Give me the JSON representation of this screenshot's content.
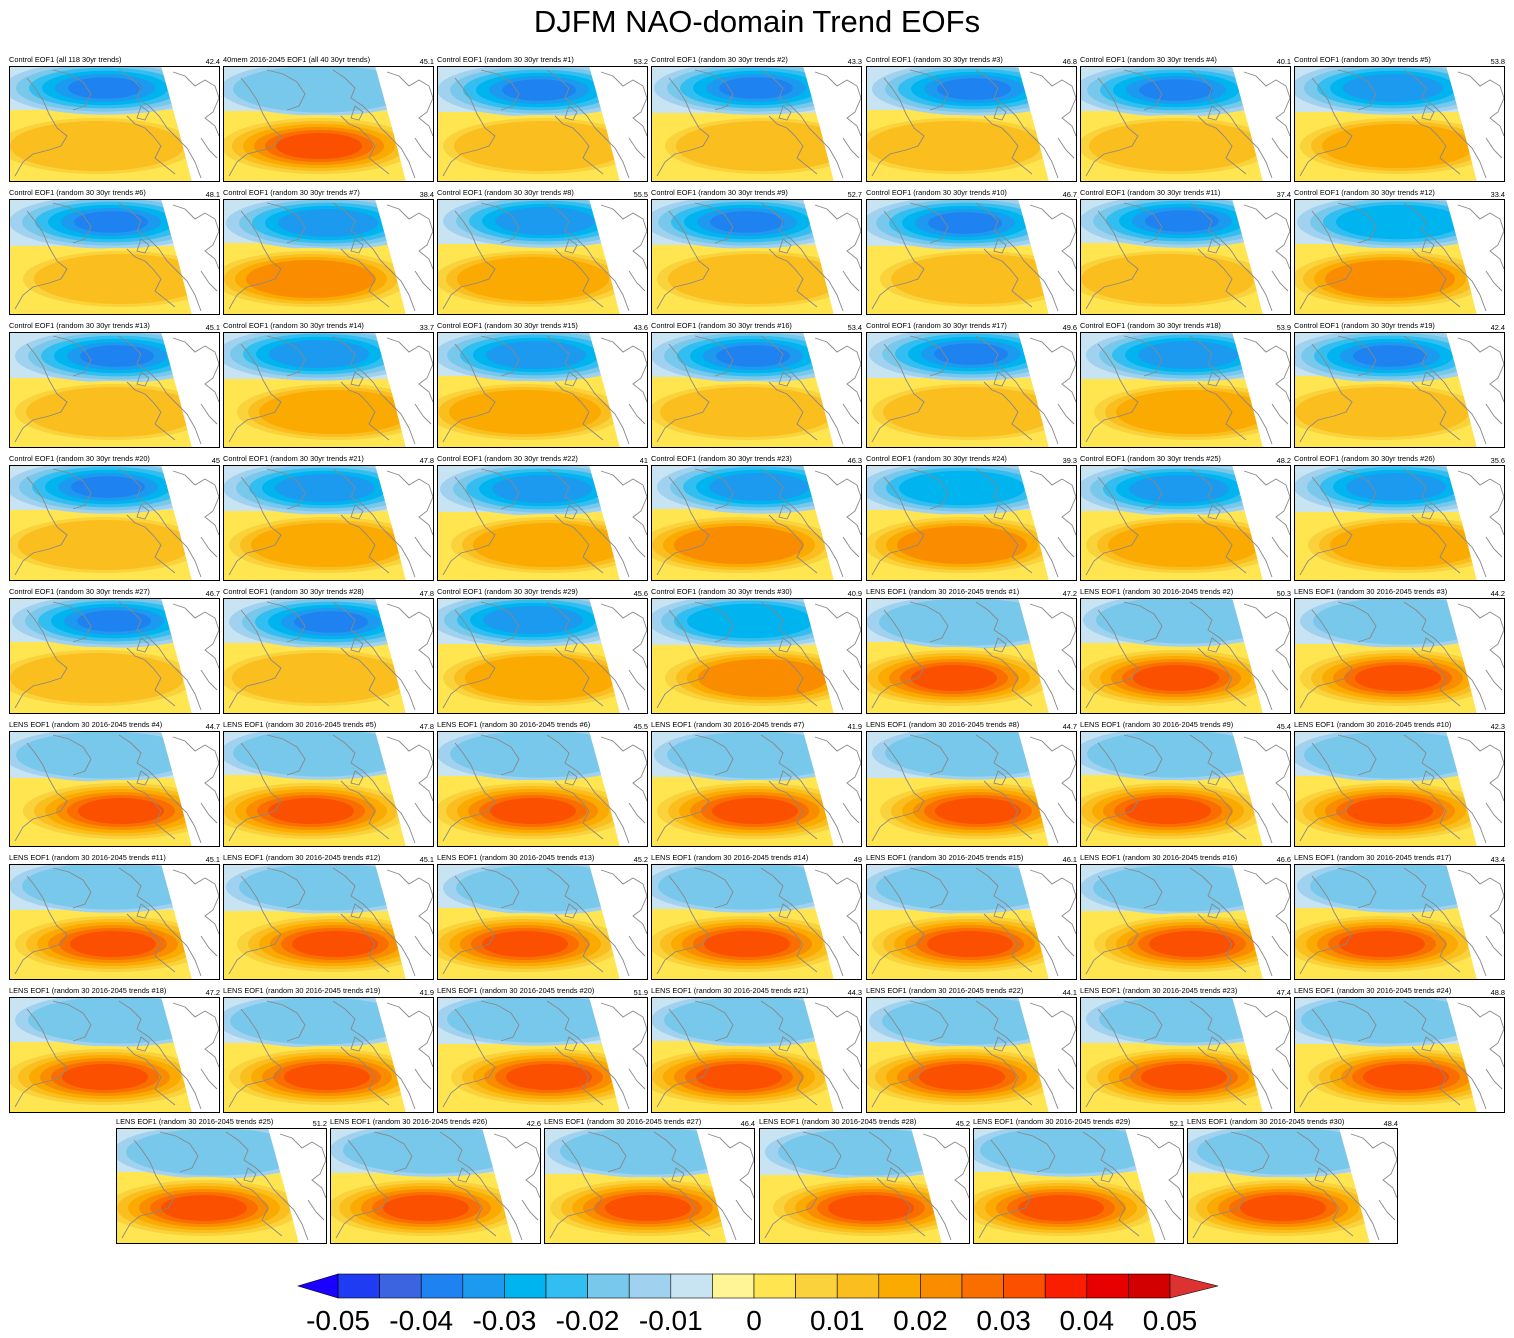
{
  "title": "DJFM NAO-domain Trend EOFs",
  "colors": {
    "levels": [
      "#1b00ff",
      "#1f3cf2",
      "#3c64e0",
      "#1e82f0",
      "#1c9af0",
      "#00b4f0",
      "#32bef0",
      "#78c8eb",
      "#a0d2f0",
      "#c8e4f3",
      "#fff596",
      "#ffe650",
      "#fad23c",
      "#fabe1e",
      "#faaa00",
      "#fa8c00",
      "#fa6e00",
      "#fa5000",
      "#fa1e00",
      "#e60000",
      "#d20000",
      "#dc3232"
    ]
  },
  "colorbar": {
    "ticks": [
      "-0.05",
      "-0.04",
      "-0.03",
      "-0.02",
      "-0.01",
      "0",
      "0.01",
      "0.02",
      "0.03",
      "0.04",
      "0.05"
    ]
  },
  "chart_data": {
    "type": "heatmap",
    "field": "EOF1 of DJFM trends over NAO domain",
    "color_range": [
      -0.05,
      0.05
    ],
    "color_interval": 0.005,
    "panels": [
      {
        "title": "Control EOF1 (all 118 30yr trends)",
        "pct": "42.4",
        "amp": 1.0
      },
      {
        "title": "40mem 2016-2045 EOF1 (all 40 30yr trends)",
        "pct": "45.1",
        "amp": 0.4
      },
      {
        "title": "Control EOF1 (random 30 30yr trends #1)",
        "pct": "53.2",
        "amp": 0.95
      },
      {
        "title": "Control EOF1 (random 30 30yr trends #2)",
        "pct": "43.3",
        "amp": 1.0
      },
      {
        "title": "Control EOF1 (random 30 30yr trends #3)",
        "pct": "46.8",
        "amp": 0.95
      },
      {
        "title": "Control EOF1 (random 30 30yr trends #4)",
        "pct": "40.1",
        "amp": 0.95
      },
      {
        "title": "Control EOF1 (random 30 30yr trends #5)",
        "pct": "53.8",
        "amp": 0.9
      },
      {
        "title": "Control EOF1 (random 30 30yr trends #6)",
        "pct": "48.1",
        "amp": 1.0
      },
      {
        "title": "Control EOF1 (random 30 30yr trends #7)",
        "pct": "38.4",
        "amp": 0.8
      },
      {
        "title": "Control EOF1 (random 30 30yr trends #8)",
        "pct": "55.5",
        "amp": 0.9
      },
      {
        "title": "Control EOF1 (random 30 30yr trends #9)",
        "pct": "52.7",
        "amp": 0.95
      },
      {
        "title": "Control EOF1 (random 30 30yr trends #10)",
        "pct": "46.7",
        "amp": 0.95
      },
      {
        "title": "Control EOF1 (random 30 30yr trends #11)",
        "pct": "37.4",
        "amp": 1.0
      },
      {
        "title": "Control EOF1 (random 30 30yr trends #12)",
        "pct": "33.4",
        "amp": 0.75
      },
      {
        "title": "Control EOF1 (random 30 30yr trends #13)",
        "pct": "45.1",
        "amp": 1.0
      },
      {
        "title": "Control EOF1 (random 30 30yr trends #14)",
        "pct": "33.7",
        "amp": 0.9
      },
      {
        "title": "Control EOF1 (random 30 30yr trends #15)",
        "pct": "43.6",
        "amp": 0.9
      },
      {
        "title": "Control EOF1 (random 30 30yr trends #16)",
        "pct": "53.4",
        "amp": 1.0
      },
      {
        "title": "Control EOF1 (random 30 30yr trends #17)",
        "pct": "49.6",
        "amp": 0.95
      },
      {
        "title": "Control EOF1 (random 30 30yr trends #18)",
        "pct": "53.9",
        "amp": 0.9
      },
      {
        "title": "Control EOF1 (random 30 30yr trends #19)",
        "pct": "42.4",
        "amp": 1.0
      },
      {
        "title": "Control EOF1 (random 30 30yr trends #20)",
        "pct": "45",
        "amp": 1.0
      },
      {
        "title": "Control EOF1 (random 30 30yr trends #21)",
        "pct": "47.8",
        "amp": 0.85
      },
      {
        "title": "Control EOF1 (random 30 30yr trends #22)",
        "pct": "41",
        "amp": 0.9
      },
      {
        "title": "Control EOF1 (random 30 30yr trends #23)",
        "pct": "46.3",
        "amp": 0.8
      },
      {
        "title": "Control EOF1 (random 30 30yr trends #24)",
        "pct": "39.3",
        "amp": 0.75
      },
      {
        "title": "Control EOF1 (random 30 30yr trends #25)",
        "pct": "48.2",
        "amp": 0.85
      },
      {
        "title": "Control EOF1 (random 30 30yr trends #26)",
        "pct": "35.6",
        "amp": 0.85
      },
      {
        "title": "Control EOF1 (random 30 30yr trends #27)",
        "pct": "46.7",
        "amp": 1.0
      },
      {
        "title": "Control EOF1 (random 30 30yr trends #28)",
        "pct": "47.8",
        "amp": 0.95
      },
      {
        "title": "Control EOF1 (random 30 30yr trends #29)",
        "pct": "45.6",
        "amp": 0.9
      },
      {
        "title": "Control EOF1 (random 30 30yr trends #30)",
        "pct": "40.9",
        "amp": 0.75
      },
      {
        "title": "LENS EOF1 (random 30 2016-2045 trends #1)",
        "pct": "47.2",
        "amp": 0.4
      },
      {
        "title": "LENS EOF1 (random 30 2016-2045 trends #2)",
        "pct": "50.3",
        "amp": 0.4
      },
      {
        "title": "LENS EOF1 (random 30 2016-2045 trends #3)",
        "pct": "44.2",
        "amp": 0.4
      },
      {
        "title": "LENS EOF1 (random 30 2016-2045 trends #4)",
        "pct": "44.7",
        "amp": 0.4
      },
      {
        "title": "LENS EOF1 (random 30 2016-2045 trends #5)",
        "pct": "47.8",
        "amp": 0.4
      },
      {
        "title": "LENS EOF1 (random 30 2016-2045 trends #6)",
        "pct": "45.5",
        "amp": 0.45
      },
      {
        "title": "LENS EOF1 (random 30 2016-2045 trends #7)",
        "pct": "41.9",
        "amp": 0.4
      },
      {
        "title": "LENS EOF1 (random 30 2016-2045 trends #8)",
        "pct": "44.7",
        "amp": 0.45
      },
      {
        "title": "LENS EOF1 (random 30 2016-2045 trends #9)",
        "pct": "45.4",
        "amp": 0.4
      },
      {
        "title": "LENS EOF1 (random 30 2016-2045 trends #10)",
        "pct": "42.3",
        "amp": 0.4
      },
      {
        "title": "LENS EOF1 (random 30 2016-2045 trends #11)",
        "pct": "45.1",
        "amp": 0.4
      },
      {
        "title": "LENS EOF1 (random 30 2016-2045 trends #12)",
        "pct": "45.1",
        "amp": 0.4
      },
      {
        "title": "LENS EOF1 (random 30 2016-2045 trends #13)",
        "pct": "45.2",
        "amp": 0.45
      },
      {
        "title": "LENS EOF1 (random 30 2016-2045 trends #14)",
        "pct": "49",
        "amp": 0.4
      },
      {
        "title": "LENS EOF1 (random 30 2016-2045 trends #15)",
        "pct": "46.1",
        "amp": 0.4
      },
      {
        "title": "LENS EOF1 (random 30 2016-2045 trends #16)",
        "pct": "46.6",
        "amp": 0.4
      },
      {
        "title": "LENS EOF1 (random 30 2016-2045 trends #17)",
        "pct": "43.4",
        "amp": 0.4
      },
      {
        "title": "LENS EOF1 (random 30 2016-2045 trends #18)",
        "pct": "47.2",
        "amp": 0.4
      },
      {
        "title": "LENS EOF1 (random 30 2016-2045 trends #19)",
        "pct": "41.9",
        "amp": 0.45
      },
      {
        "title": "LENS EOF1 (random 30 2016-2045 trends #20)",
        "pct": "51.9",
        "amp": 0.45
      },
      {
        "title": "LENS EOF1 (random 30 2016-2045 trends #21)",
        "pct": "44.3",
        "amp": 0.45
      },
      {
        "title": "LENS EOF1 (random 30 2016-2045 trends #22)",
        "pct": "44.1",
        "amp": 0.4
      },
      {
        "title": "LENS EOF1 (random 30 2016-2045 trends #23)",
        "pct": "47.4",
        "amp": 0.45
      },
      {
        "title": "LENS EOF1 (random 30 2016-2045 trends #24)",
        "pct": "48.8",
        "amp": 0.4
      },
      {
        "title": "LENS EOF1 (random 30 2016-2045 trends #25)",
        "pct": "51.2",
        "amp": 0.4
      },
      {
        "title": "LENS EOF1 (random 30 2016-2045 trends #26)",
        "pct": "42.6",
        "amp": 0.4
      },
      {
        "title": "LENS EOF1 (random 30 2016-2045 trends #27)",
        "pct": "46.4",
        "amp": 0.45
      },
      {
        "title": "LENS EOF1 (random 30 2016-2045 trends #28)",
        "pct": "45.2",
        "amp": 0.45
      },
      {
        "title": "LENS EOF1 (random 30 2016-2045 trends #29)",
        "pct": "52.1",
        "amp": 0.45
      },
      {
        "title": "LENS EOF1 (random 30 2016-2045 trends #30)",
        "pct": "48.4",
        "amp": 0.4
      }
    ]
  }
}
